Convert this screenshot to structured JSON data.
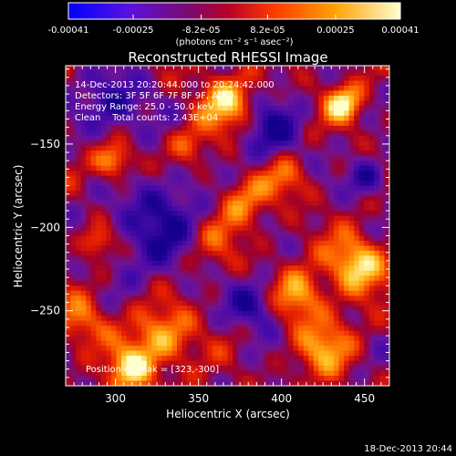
{
  "chart_data": {
    "type": "heatmap",
    "title": "Reconstructed RHESSI Image",
    "xlabel": "Heliocentric X (arcsec)",
    "ylabel": "Heliocentric Y (arcsec)",
    "xlim": [
      270,
      465
    ],
    "ylim": [
      -295,
      -103
    ],
    "x_ticks": [
      300,
      350,
      400,
      450
    ],
    "y_ticks": [
      -150,
      -200,
      -250
    ],
    "colorbar": {
      "min": -0.00041,
      "max": 0.00041,
      "tick_labels": [
        "-0.00041",
        "-0.00025",
        "-8.2e-05",
        "8.2e-05",
        "0.00025",
        "0.00041"
      ],
      "tick_values": [
        -0.00041,
        -0.00025,
        -8.2e-05,
        8.2e-05,
        0.00025,
        0.00041
      ],
      "unit_label": "(photons cm⁻² s⁻¹ asec⁻²)",
      "colors": [
        "#0000ff",
        "#6a00d8",
        "#b8002a",
        "#ff3a00",
        "#ffa000",
        "#ffffc8"
      ]
    },
    "peak_position": [
      323,
      -300
    ]
  },
  "annotations": {
    "line1": "14-Dec-2013 20:20:44.000 to 20:24:42.000",
    "line2": "Detectors: 3F 5F 6F 7F 8F 9F, Att 0",
    "line3": "Energy Range: 25.0 - 50.0 keV",
    "line4": "Clean    Total counts: 2.43E+04",
    "peak": "Position of Peak = [323,-300]"
  },
  "footer": {
    "timestamp": "18-Dec-2013 20:44"
  }
}
